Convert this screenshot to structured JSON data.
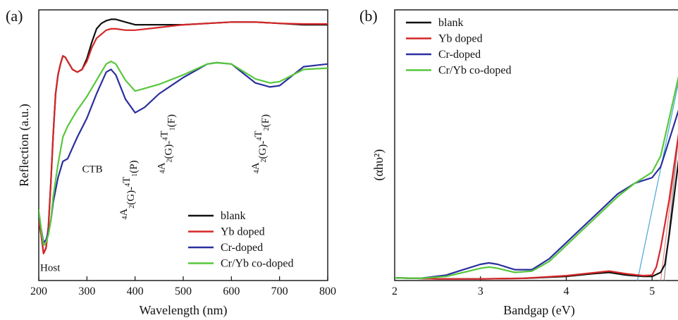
{
  "colors": {
    "blank": "#111111",
    "yb": "#d62728",
    "cr": "#2b2f9e",
    "co": "#57c83c",
    "fit_blue": "#4aa6d8",
    "fit_gray": "#8a8a8a",
    "fit_red": "#e88a8a"
  },
  "chart_data": [
    {
      "panel": "(a)",
      "type": "line",
      "xlabel": "Wavelength (nm)",
      "ylabel": "Reflection (a.u.)",
      "xlim": [
        200,
        800
      ],
      "ylim": [
        0,
        1
      ],
      "xticks": [
        200,
        300,
        400,
        500,
        600,
        700,
        800
      ],
      "y_tick_labels": false,
      "grid": false,
      "legend": {
        "placement": "bottom-right",
        "entries": [
          "blank",
          "Yb doped",
          "Cr-doped",
          "Cr/Yb co-doped"
        ]
      },
      "annotations": [
        {
          "text": "Host",
          "x": 203,
          "y": 0.035
        },
        {
          "text": "CTB",
          "x": 290,
          "y": 0.4
        }
      ],
      "transition_labels": [
        {
          "x": 392,
          "y": 0.225,
          "pre": "4",
          "a": "A",
          "as": "2",
          "mid": "(G)-",
          "pre2": "4",
          "t": "T",
          "ts": "1",
          "end": "(P)"
        },
        {
          "x": 470,
          "y": 0.395,
          "pre": "4",
          "a": "A",
          "as": "2",
          "mid": "(G)-",
          "pre2": "4",
          "t": "T",
          "ts": "1",
          "end": "(F)"
        },
        {
          "x": 665,
          "y": 0.395,
          "pre": "4",
          "a": "A",
          "as": "2",
          "mid": "(G)-",
          "pre2": "4",
          "t": "T",
          "ts": "2",
          "end": "(F)"
        }
      ],
      "series": [
        {
          "name": "blank",
          "color_key": "blank",
          "x": [
            200,
            205,
            210,
            215,
            220,
            225,
            230,
            235,
            240,
            245,
            250,
            255,
            260,
            265,
            270,
            280,
            290,
            300,
            310,
            320,
            330,
            340,
            350,
            360,
            380,
            400,
            450,
            500,
            550,
            600,
            650,
            700,
            750,
            800
          ],
          "y": [
            0.22,
            0.17,
            0.1,
            0.12,
            0.2,
            0.36,
            0.54,
            0.69,
            0.76,
            0.8,
            0.83,
            0.825,
            0.81,
            0.795,
            0.78,
            0.77,
            0.78,
            0.82,
            0.88,
            0.93,
            0.95,
            0.96,
            0.965,
            0.965,
            0.955,
            0.945,
            0.945,
            0.945,
            0.95,
            0.955,
            0.955,
            0.95,
            0.945,
            0.945
          ]
        },
        {
          "name": "Yb doped",
          "color_key": "yb",
          "x": [
            200,
            205,
            210,
            215,
            220,
            225,
            230,
            235,
            240,
            245,
            250,
            255,
            260,
            265,
            270,
            280,
            290,
            300,
            310,
            320,
            330,
            340,
            350,
            360,
            380,
            400,
            450,
            500,
            550,
            600,
            650,
            700,
            750,
            800
          ],
          "y": [
            0.22,
            0.17,
            0.1,
            0.12,
            0.2,
            0.36,
            0.54,
            0.69,
            0.76,
            0.8,
            0.83,
            0.825,
            0.81,
            0.795,
            0.78,
            0.77,
            0.78,
            0.81,
            0.86,
            0.895,
            0.91,
            0.925,
            0.93,
            0.93,
            0.925,
            0.925,
            0.935,
            0.945,
            0.95,
            0.955,
            0.955,
            0.95,
            0.948,
            0.948
          ]
        },
        {
          "name": "Cr-doped",
          "color_key": "cr",
          "x": [
            200,
            205,
            210,
            215,
            220,
            225,
            230,
            240,
            250,
            260,
            270,
            280,
            300,
            320,
            340,
            350,
            360,
            380,
            400,
            420,
            450,
            500,
            550,
            570,
            600,
            650,
            680,
            700,
            750,
            800
          ],
          "y": [
            0.25,
            0.19,
            0.14,
            0.15,
            0.18,
            0.22,
            0.29,
            0.38,
            0.44,
            0.45,
            0.49,
            0.53,
            0.6,
            0.69,
            0.77,
            0.78,
            0.76,
            0.67,
            0.62,
            0.64,
            0.69,
            0.75,
            0.8,
            0.805,
            0.8,
            0.73,
            0.715,
            0.72,
            0.79,
            0.8
          ]
        },
        {
          "name": "Cr/Yb co-doped",
          "color_key": "co",
          "x": [
            200,
            205,
            210,
            215,
            220,
            225,
            230,
            240,
            250,
            260,
            270,
            280,
            300,
            320,
            340,
            350,
            360,
            380,
            400,
            420,
            450,
            500,
            550,
            570,
            600,
            650,
            680,
            700,
            750,
            800
          ],
          "y": [
            0.26,
            0.19,
            0.13,
            0.14,
            0.17,
            0.22,
            0.31,
            0.43,
            0.53,
            0.57,
            0.6,
            0.63,
            0.68,
            0.74,
            0.8,
            0.81,
            0.8,
            0.74,
            0.7,
            0.71,
            0.725,
            0.76,
            0.8,
            0.805,
            0.8,
            0.745,
            0.73,
            0.735,
            0.78,
            0.785
          ]
        }
      ]
    },
    {
      "panel": "(b)",
      "type": "line",
      "xlabel": "Bandgap (eV)",
      "ylabel": "(αhυ²)",
      "xlim": [
        2,
        5.45
      ],
      "ylim": [
        0,
        1
      ],
      "xticks": [
        2,
        3,
        4,
        5
      ],
      "y_tick_labels": false,
      "grid": false,
      "legend": {
        "placement": "top-left",
        "entries": [
          "blank",
          "Yb doped",
          "Cr-doped",
          "Cr/Yb co-doped"
        ]
      },
      "series": [
        {
          "name": "blank",
          "color_key": "blank",
          "x": [
            2,
            2.5,
            3,
            3.5,
            4,
            4.3,
            4.5,
            4.7,
            4.9,
            5.0,
            5.1,
            5.15,
            5.2,
            5.3,
            5.45
          ],
          "y": [
            0.01,
            0.006,
            0.006,
            0.008,
            0.015,
            0.025,
            0.03,
            0.02,
            0.015,
            0.015,
            0.03,
            0.06,
            0.17,
            0.42,
            0.8
          ]
        },
        {
          "name": "Yb doped",
          "color_key": "yb",
          "x": [
            2,
            2.5,
            3,
            3.5,
            4,
            4.3,
            4.5,
            4.7,
            4.9,
            5.0,
            5.05,
            5.1,
            5.2,
            5.3,
            5.45
          ],
          "y": [
            0.01,
            0.006,
            0.006,
            0.008,
            0.018,
            0.028,
            0.035,
            0.025,
            0.018,
            0.02,
            0.05,
            0.12,
            0.3,
            0.52,
            0.85
          ]
        },
        {
          "name": "Cr-doped",
          "color_key": "cr",
          "x": [
            2,
            2.3,
            2.6,
            2.8,
            3.0,
            3.1,
            3.2,
            3.4,
            3.6,
            3.8,
            4.0,
            4.2,
            4.4,
            4.6,
            4.8,
            4.9,
            5.0,
            5.1,
            5.2,
            5.3,
            5.45
          ],
          "y": [
            0.01,
            0.008,
            0.02,
            0.04,
            0.06,
            0.065,
            0.06,
            0.04,
            0.04,
            0.08,
            0.14,
            0.2,
            0.26,
            0.32,
            0.36,
            0.37,
            0.38,
            0.42,
            0.52,
            0.62,
            0.77
          ]
        },
        {
          "name": "Cr/Yb co-doped",
          "color_key": "co",
          "x": [
            2,
            2.3,
            2.6,
            2.8,
            3.0,
            3.1,
            3.2,
            3.4,
            3.6,
            3.8,
            4.0,
            4.2,
            4.4,
            4.6,
            4.8,
            4.9,
            5.0,
            5.1,
            5.2,
            5.3,
            5.45
          ],
          "y": [
            0.01,
            0.008,
            0.015,
            0.03,
            0.045,
            0.05,
            0.045,
            0.03,
            0.035,
            0.07,
            0.13,
            0.19,
            0.25,
            0.31,
            0.36,
            0.38,
            0.4,
            0.46,
            0.6,
            0.74,
            0.95
          ]
        }
      ],
      "fit_lines": [
        {
          "color_key": "fit_blue",
          "x": [
            4.83,
            5.45
          ],
          "y": [
            0,
            0.95
          ]
        },
        {
          "color_key": "fit_gray",
          "x": [
            5.14,
            5.45
          ],
          "y": [
            0,
            0.98
          ]
        },
        {
          "color_key": "fit_red",
          "x": [
            5.1,
            5.45
          ],
          "y": [
            0,
            0.9
          ]
        }
      ]
    }
  ]
}
